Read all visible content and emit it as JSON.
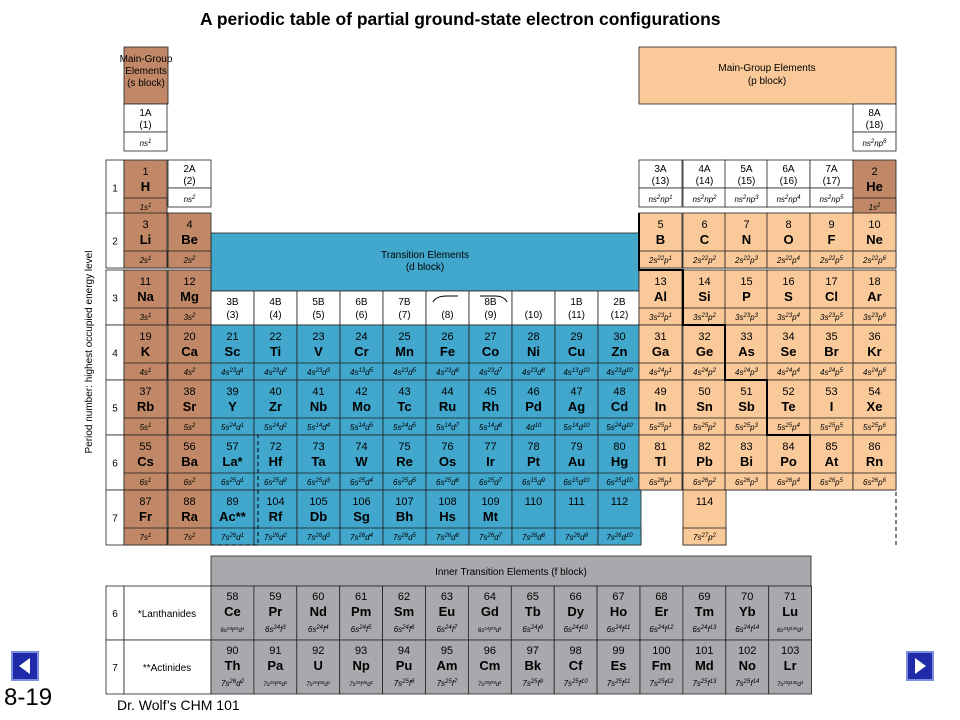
{
  "slide": {
    "title": "A periodic table of partial ground-state electron configurations",
    "number": "8-19",
    "credit": "Dr. Wolf’s CHM 101"
  },
  "colors": {
    "s_block": "#c08867",
    "p_block": "#f9c99a",
    "d_block": "#41a7cc",
    "f_block": "#a7a9ac",
    "nav": "#1f2ba8"
  },
  "labels": {
    "s_block_heading": [
      "Main-Group",
      "Elements",
      "(s block)"
    ],
    "p_block_heading": [
      "Main-Group Elements",
      "(p block)"
    ],
    "d_block_heading": [
      "Transition Elements",
      "(d block)"
    ],
    "f_block_heading": "Inner Transition Elements (f block)",
    "period_axis": "Period number: highest occupied energy level",
    "lanthanides": "*Lanthanides",
    "actinides": "**Actinides"
  },
  "groups": [
    {
      "col": 0,
      "name": "1A",
      "num": "(1)",
      "cfg": "ns1"
    },
    {
      "col": 1,
      "name": "2A",
      "num": "(2)",
      "cfg": "ns2"
    },
    {
      "col": 2,
      "name": "3B",
      "num": "(3)"
    },
    {
      "col": 3,
      "name": "4B",
      "num": "(4)"
    },
    {
      "col": 4,
      "name": "5B",
      "num": "(5)"
    },
    {
      "col": 5,
      "name": "6B",
      "num": "(6)"
    },
    {
      "col": 6,
      "name": "7B",
      "num": "(7)"
    },
    {
      "col": 7,
      "name": "",
      "num": "(8)"
    },
    {
      "col": 8,
      "name": "8B",
      "num": "(9)"
    },
    {
      "col": 9,
      "name": "",
      "num": "(10)"
    },
    {
      "col": 10,
      "name": "1B",
      "num": "(11)"
    },
    {
      "col": 11,
      "name": "2B",
      "num": "(12)"
    },
    {
      "col": 12,
      "name": "3A",
      "num": "(13)",
      "cfg": "ns2np1"
    },
    {
      "col": 13,
      "name": "4A",
      "num": "(14)",
      "cfg": "ns2np2"
    },
    {
      "col": 14,
      "name": "5A",
      "num": "(15)",
      "cfg": "ns2np3"
    },
    {
      "col": 15,
      "name": "6A",
      "num": "(16)",
      "cfg": "ns2np4"
    },
    {
      "col": 16,
      "name": "7A",
      "num": "(17)",
      "cfg": "ns2np5"
    },
    {
      "col": 17,
      "name": "8A",
      "num": "(18)",
      "cfg": "ns2np6"
    }
  ],
  "periods": [
    "1",
    "2",
    "3",
    "4",
    "5",
    "6",
    "7"
  ],
  "elements": [
    {
      "n": "1",
      "s": "H",
      "c": "1s1",
      "p": 1,
      "g": 0,
      "b": "s"
    },
    {
      "n": "2",
      "s": "He",
      "c": "1s2",
      "p": 1,
      "g": 17,
      "b": "s"
    },
    {
      "n": "3",
      "s": "Li",
      "c": "2s1",
      "p": 2,
      "g": 0,
      "b": "s"
    },
    {
      "n": "4",
      "s": "Be",
      "c": "2s2",
      "p": 2,
      "g": 1,
      "b": "s"
    },
    {
      "n": "5",
      "s": "B",
      "c": "2s22p1",
      "p": 2,
      "g": 12,
      "b": "p"
    },
    {
      "n": "6",
      "s": "C",
      "c": "2s22p2",
      "p": 2,
      "g": 13,
      "b": "p"
    },
    {
      "n": "7",
      "s": "N",
      "c": "2s22p3",
      "p": 2,
      "g": 14,
      "b": "p"
    },
    {
      "n": "8",
      "s": "O",
      "c": "2s22p4",
      "p": 2,
      "g": 15,
      "b": "p"
    },
    {
      "n": "9",
      "s": "F",
      "c": "2s22p5",
      "p": 2,
      "g": 16,
      "b": "p"
    },
    {
      "n": "10",
      "s": "Ne",
      "c": "2s22p6",
      "p": 2,
      "g": 17,
      "b": "p"
    },
    {
      "n": "11",
      "s": "Na",
      "c": "3s1",
      "p": 3,
      "g": 0,
      "b": "s"
    },
    {
      "n": "12",
      "s": "Mg",
      "c": "3s2",
      "p": 3,
      "g": 1,
      "b": "s"
    },
    {
      "n": "13",
      "s": "Al",
      "c": "3s23p1",
      "p": 3,
      "g": 12,
      "b": "p"
    },
    {
      "n": "14",
      "s": "Si",
      "c": "3s23p2",
      "p": 3,
      "g": 13,
      "b": "p"
    },
    {
      "n": "15",
      "s": "P",
      "c": "3s23p3",
      "p": 3,
      "g": 14,
      "b": "p"
    },
    {
      "n": "16",
      "s": "S",
      "c": "3s23p4",
      "p": 3,
      "g": 15,
      "b": "p"
    },
    {
      "n": "17",
      "s": "Cl",
      "c": "3s23p5",
      "p": 3,
      "g": 16,
      "b": "p"
    },
    {
      "n": "18",
      "s": "Ar",
      "c": "3s23p6",
      "p": 3,
      "g": 17,
      "b": "p"
    },
    {
      "n": "19",
      "s": "K",
      "c": "4s1",
      "p": 4,
      "g": 0,
      "b": "s"
    },
    {
      "n": "20",
      "s": "Ca",
      "c": "4s2",
      "p": 4,
      "g": 1,
      "b": "s"
    },
    {
      "n": "21",
      "s": "Sc",
      "c": "4s23d1",
      "p": 4,
      "g": 2,
      "b": "d"
    },
    {
      "n": "22",
      "s": "Ti",
      "c": "4s23d2",
      "p": 4,
      "g": 3,
      "b": "d"
    },
    {
      "n": "23",
      "s": "V",
      "c": "4s23d3",
      "p": 4,
      "g": 4,
      "b": "d"
    },
    {
      "n": "24",
      "s": "Cr",
      "c": "4s13d5",
      "p": 4,
      "g": 5,
      "b": "d"
    },
    {
      "n": "25",
      "s": "Mn",
      "c": "4s23d5",
      "p": 4,
      "g": 6,
      "b": "d"
    },
    {
      "n": "26",
      "s": "Fe",
      "c": "4s23d6",
      "p": 4,
      "g": 7,
      "b": "d"
    },
    {
      "n": "27",
      "s": "Co",
      "c": "4s23d7",
      "p": 4,
      "g": 8,
      "b": "d"
    },
    {
      "n": "28",
      "s": "Ni",
      "c": "4s23d8",
      "p": 4,
      "g": 9,
      "b": "d"
    },
    {
      "n": "29",
      "s": "Cu",
      "c": "4s13d10",
      "p": 4,
      "g": 10,
      "b": "d"
    },
    {
      "n": "30",
      "s": "Zn",
      "c": "4s23d10",
      "p": 4,
      "g": 11,
      "b": "d"
    },
    {
      "n": "31",
      "s": "Ga",
      "c": "4s24p1",
      "p": 4,
      "g": 12,
      "b": "p"
    },
    {
      "n": "32",
      "s": "Ge",
      "c": "4s24p2",
      "p": 4,
      "g": 13,
      "b": "p"
    },
    {
      "n": "33",
      "s": "As",
      "c": "4s24p3",
      "p": 4,
      "g": 14,
      "b": "p"
    },
    {
      "n": "34",
      "s": "Se",
      "c": "4s24p4",
      "p": 4,
      "g": 15,
      "b": "p"
    },
    {
      "n": "35",
      "s": "Br",
      "c": "4s24p5",
      "p": 4,
      "g": 16,
      "b": "p"
    },
    {
      "n": "36",
      "s": "Kr",
      "c": "4s24p6",
      "p": 4,
      "g": 17,
      "b": "p"
    },
    {
      "n": "37",
      "s": "Rb",
      "c": "5s1",
      "p": 5,
      "g": 0,
      "b": "s"
    },
    {
      "n": "38",
      "s": "Sr",
      "c": "5s2",
      "p": 5,
      "g": 1,
      "b": "s"
    },
    {
      "n": "39",
      "s": "Y",
      "c": "5s24d1",
      "p": 5,
      "g": 2,
      "b": "d"
    },
    {
      "n": "40",
      "s": "Zr",
      "c": "5s24d2",
      "p": 5,
      "g": 3,
      "b": "d"
    },
    {
      "n": "41",
      "s": "Nb",
      "c": "5s14d4",
      "p": 5,
      "g": 4,
      "b": "d"
    },
    {
      "n": "42",
      "s": "Mo",
      "c": "5s14d5",
      "p": 5,
      "g": 5,
      "b": "d"
    },
    {
      "n": "43",
      "s": "Tc",
      "c": "5s24d5",
      "p": 5,
      "g": 6,
      "b": "d"
    },
    {
      "n": "44",
      "s": "Ru",
      "c": "5s14d7",
      "p": 5,
      "g": 7,
      "b": "d"
    },
    {
      "n": "45",
      "s": "Rh",
      "c": "5s14d8",
      "p": 5,
      "g": 8,
      "b": "d"
    },
    {
      "n": "46",
      "s": "Pd",
      "c": "4d10",
      "p": 5,
      "g": 9,
      "b": "d"
    },
    {
      "n": "47",
      "s": "Ag",
      "c": "5s14d10",
      "p": 5,
      "g": 10,
      "b": "d"
    },
    {
      "n": "48",
      "s": "Cd",
      "c": "5s24d10",
      "p": 5,
      "g": 11,
      "b": "d"
    },
    {
      "n": "49",
      "s": "In",
      "c": "5s25p1",
      "p": 5,
      "g": 12,
      "b": "p"
    },
    {
      "n": "50",
      "s": "Sn",
      "c": "5s25p2",
      "p": 5,
      "g": 13,
      "b": "p"
    },
    {
      "n": "51",
      "s": "Sb",
      "c": "5s25p3",
      "p": 5,
      "g": 14,
      "b": "p"
    },
    {
      "n": "52",
      "s": "Te",
      "c": "5s25p4",
      "p": 5,
      "g": 15,
      "b": "p"
    },
    {
      "n": "53",
      "s": "I",
      "c": "5s25p5",
      "p": 5,
      "g": 16,
      "b": "p"
    },
    {
      "n": "54",
      "s": "Xe",
      "c": "5s25p6",
      "p": 5,
      "g": 17,
      "b": "p"
    },
    {
      "n": "55",
      "s": "Cs",
      "c": "6s1",
      "p": 6,
      "g": 0,
      "b": "s"
    },
    {
      "n": "56",
      "s": "Ba",
      "c": "6s2",
      "p": 6,
      "g": 1,
      "b": "s"
    },
    {
      "n": "57",
      "s": "La*",
      "c": "6s25d1",
      "p": 6,
      "g": 2,
      "b": "d"
    },
    {
      "n": "72",
      "s": "Hf",
      "c": "6s25d2",
      "p": 6,
      "g": 3,
      "b": "d"
    },
    {
      "n": "73",
      "s": "Ta",
      "c": "6s25d3",
      "p": 6,
      "g": 4,
      "b": "d"
    },
    {
      "n": "74",
      "s": "W",
      "c": "6s25d4",
      "p": 6,
      "g": 5,
      "b": "d"
    },
    {
      "n": "75",
      "s": "Re",
      "c": "6s25d5",
      "p": 6,
      "g": 6,
      "b": "d"
    },
    {
      "n": "76",
      "s": "Os",
      "c": "6s25d6",
      "p": 6,
      "g": 7,
      "b": "d"
    },
    {
      "n": "77",
      "s": "Ir",
      "c": "6s25d7",
      "p": 6,
      "g": 8,
      "b": "d"
    },
    {
      "n": "78",
      "s": "Pt",
      "c": "6s15d9",
      "p": 6,
      "g": 9,
      "b": "d"
    },
    {
      "n": "79",
      "s": "Au",
      "c": "6s15d10",
      "p": 6,
      "g": 10,
      "b": "d"
    },
    {
      "n": "80",
      "s": "Hg",
      "c": "6s25d10",
      "p": 6,
      "g": 11,
      "b": "d"
    },
    {
      "n": "81",
      "s": "Tl",
      "c": "6s26p1",
      "p": 6,
      "g": 12,
      "b": "p"
    },
    {
      "n": "82",
      "s": "Pb",
      "c": "6s26p2",
      "p": 6,
      "g": 13,
      "b": "p"
    },
    {
      "n": "83",
      "s": "Bi",
      "c": "6s26p3",
      "p": 6,
      "g": 14,
      "b": "p"
    },
    {
      "n": "84",
      "s": "Po",
      "c": "6s26p4",
      "p": 6,
      "g": 15,
      "b": "p"
    },
    {
      "n": "85",
      "s": "At",
      "c": "6s26p5",
      "p": 6,
      "g": 16,
      "b": "p"
    },
    {
      "n": "86",
      "s": "Rn",
      "c": "6s26p6",
      "p": 6,
      "g": 17,
      "b": "p"
    },
    {
      "n": "87",
      "s": "Fr",
      "c": "7s1",
      "p": 7,
      "g": 0,
      "b": "s"
    },
    {
      "n": "88",
      "s": "Ra",
      "c": "7s2",
      "p": 7,
      "g": 1,
      "b": "s"
    },
    {
      "n": "89",
      "s": "Ac**",
      "c": "7s26d1",
      "p": 7,
      "g": 2,
      "b": "d"
    },
    {
      "n": "104",
      "s": "Rf",
      "c": "7s26d2",
      "p": 7,
      "g": 3,
      "b": "d"
    },
    {
      "n": "105",
      "s": "Db",
      "c": "7s26d3",
      "p": 7,
      "g": 4,
      "b": "d"
    },
    {
      "n": "106",
      "s": "Sg",
      "c": "7s26d4",
      "p": 7,
      "g": 5,
      "b": "d"
    },
    {
      "n": "107",
      "s": "Bh",
      "c": "7s26d5",
      "p": 7,
      "g": 6,
      "b": "d"
    },
    {
      "n": "108",
      "s": "Hs",
      "c": "7s26d6",
      "p": 7,
      "g": 7,
      "b": "d"
    },
    {
      "n": "109",
      "s": "Mt",
      "c": "7s26d7",
      "p": 7,
      "g": 8,
      "b": "d"
    },
    {
      "n": "110",
      "s": "",
      "c": "7s26d8",
      "p": 7,
      "g": 9,
      "b": "d"
    },
    {
      "n": "111",
      "s": "",
      "c": "7s26d9",
      "p": 7,
      "g": 10,
      "b": "d"
    },
    {
      "n": "112",
      "s": "",
      "c": "7s26d10",
      "p": 7,
      "g": 11,
      "b": "d"
    },
    {
      "n": "114",
      "s": "",
      "c": "7s27p2",
      "p": 7,
      "g": 13,
      "b": "p"
    }
  ],
  "lanthanides": [
    {
      "n": "58",
      "s": "Ce",
      "c": "6s24f15d1"
    },
    {
      "n": "59",
      "s": "Pr",
      "c": "6s24f3"
    },
    {
      "n": "60",
      "s": "Nd",
      "c": "6s24f4"
    },
    {
      "n": "61",
      "s": "Pm",
      "c": "6s24f5"
    },
    {
      "n": "62",
      "s": "Sm",
      "c": "6s24f6"
    },
    {
      "n": "63",
      "s": "Eu",
      "c": "6s24f7"
    },
    {
      "n": "64",
      "s": "Gd",
      "c": "6s24f75d1"
    },
    {
      "n": "65",
      "s": "Tb",
      "c": "6s24f9"
    },
    {
      "n": "66",
      "s": "Dy",
      "c": "6s24f10"
    },
    {
      "n": "67",
      "s": "Ho",
      "c": "6s24f11"
    },
    {
      "n": "68",
      "s": "Er",
      "c": "6s24f12"
    },
    {
      "n": "69",
      "s": "Tm",
      "c": "6s24f13"
    },
    {
      "n": "70",
      "s": "Yb",
      "c": "6s24f14"
    },
    {
      "n": "71",
      "s": "Lu",
      "c": "6s24f145d1"
    }
  ],
  "actinides": [
    {
      "n": "90",
      "s": "Th",
      "c": "7s26d2"
    },
    {
      "n": "91",
      "s": "Pa",
      "c": "7s25f26d1"
    },
    {
      "n": "92",
      "s": "U",
      "c": "7s25f36d1"
    },
    {
      "n": "93",
      "s": "Np",
      "c": "7s25f46d1"
    },
    {
      "n": "94",
      "s": "Pu",
      "c": "7s25f6"
    },
    {
      "n": "95",
      "s": "Am",
      "c": "7s25f7"
    },
    {
      "n": "96",
      "s": "Cm",
      "c": "7s25f76d1"
    },
    {
      "n": "97",
      "s": "Bk",
      "c": "7s25f9"
    },
    {
      "n": "98",
      "s": "Cf",
      "c": "7s25f10"
    },
    {
      "n": "99",
      "s": "Es",
      "c": "7s25f11"
    },
    {
      "n": "100",
      "s": "Fm",
      "c": "7s25f12"
    },
    {
      "n": "101",
      "s": "Md",
      "c": "7s25f13"
    },
    {
      "n": "102",
      "s": "No",
      "c": "7s25f14"
    },
    {
      "n": "103",
      "s": "Lr",
      "c": "7s25f146d1"
    }
  ],
  "navigation": {
    "prev_icon": "triangle-left-icon",
    "next_icon": "triangle-right-icon"
  }
}
